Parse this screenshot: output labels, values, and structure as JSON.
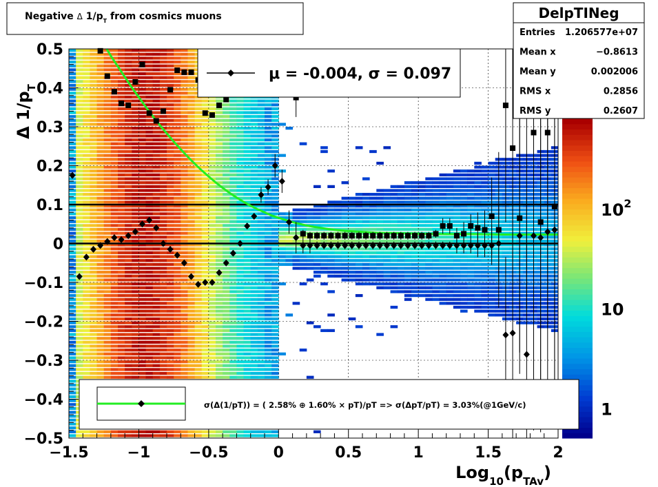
{
  "chart_data": {
    "type": "heatmap",
    "title": "Negative Δ 1/p_T from cosmics muons",
    "xlabel": {
      "base": "Log",
      "sub": "10",
      "rest": "(p",
      "sub2": "TAv",
      "close": ")"
    },
    "ylabel": {
      "main": "Δ 1/p",
      "sub": "T"
    },
    "xlim": [
      -1.5,
      2
    ],
    "ylim": [
      -0.5,
      0.5
    ],
    "x_ticks": [
      {
        "v": -1.5,
        "label": "−1.5"
      },
      {
        "v": -1,
        "label": "−1"
      },
      {
        "v": -0.5,
        "label": "−0.5"
      },
      {
        "v": 0,
        "label": "0"
      },
      {
        "v": 0.5,
        "label": "0.5"
      },
      {
        "v": 1,
        "label": "1"
      },
      {
        "v": 1.5,
        "label": "1.5"
      },
      {
        "v": 2,
        "label": "2"
      }
    ],
    "y_ticks": [
      {
        "v": -0.5,
        "label": "−0.5"
      },
      {
        "v": -0.4,
        "label": "−0.4"
      },
      {
        "v": -0.3,
        "label": "−0.3"
      },
      {
        "v": -0.2,
        "label": "−0.2"
      },
      {
        "v": -0.1,
        "label": "−0.1"
      },
      {
        "v": 0,
        "label": "0"
      },
      {
        "v": 0.1,
        "label": "0.1"
      },
      {
        "v": 0.2,
        "label": "0.2"
      },
      {
        "v": 0.3,
        "label": "0.3"
      },
      {
        "v": 0.4,
        "label": "0.4"
      },
      {
        "v": 0.5,
        "label": "0.5"
      }
    ],
    "grid": true,
    "colorbar": {
      "scale": "log",
      "range": [
        0.5,
        800
      ],
      "labels": [
        {
          "v": 1,
          "base": "1",
          "exp": ""
        },
        {
          "v": 10,
          "base": "10",
          "exp": ""
        },
        {
          "v": 100,
          "base": "10",
          "exp": "2"
        }
      ]
    },
    "reference_lines_y": [
      0,
      0.1
    ],
    "mean_series": {
      "marker": "diamond",
      "x": [
        -1.475,
        -1.425,
        -1.375,
        -1.325,
        -1.275,
        -1.225,
        -1.175,
        -1.125,
        -1.075,
        -1.025,
        -0.975,
        -0.925,
        -0.875,
        -0.825,
        -0.775,
        -0.725,
        -0.675,
        -0.625,
        -0.575,
        -0.525,
        -0.475,
        -0.425,
        -0.375,
        -0.325,
        -0.275,
        -0.225,
        -0.175,
        -0.125,
        -0.075,
        -0.025,
        0.025,
        0.075,
        0.125,
        0.175,
        0.225,
        0.275,
        0.325,
        0.375,
        0.425,
        0.475,
        0.525,
        0.575,
        0.625,
        0.675,
        0.725,
        0.775,
        0.825,
        0.875,
        0.925,
        0.975,
        1.025,
        1.075,
        1.125,
        1.175,
        1.225,
        1.275,
        1.325,
        1.375,
        1.425,
        1.475,
        1.525,
        1.575,
        1.625,
        1.675,
        1.725,
        1.775,
        1.825,
        1.875,
        1.925,
        1.975
      ],
      "y": [
        0.175,
        -0.085,
        -0.035,
        -0.015,
        -0.005,
        0.005,
        0.015,
        0.01,
        0.02,
        0.03,
        0.05,
        0.06,
        0.04,
        0.0,
        -0.015,
        -0.03,
        -0.05,
        -0.085,
        -0.105,
        -0.1,
        -0.1,
        -0.075,
        -0.05,
        -0.025,
        0.0,
        0.045,
        0.07,
        0.125,
        0.145,
        0.2,
        0.16,
        0.055,
        0.015,
        -0.005,
        -0.005,
        -0.005,
        -0.005,
        -0.005,
        -0.005,
        -0.005,
        -0.005,
        -0.005,
        -0.005,
        -0.005,
        -0.005,
        -0.005,
        -0.005,
        -0.005,
        -0.005,
        -0.005,
        -0.005,
        -0.005,
        -0.005,
        -0.005,
        -0.005,
        -0.005,
        -0.005,
        -0.005,
        -0.005,
        -0.005,
        -0.005,
        0.0,
        -0.235,
        -0.23,
        0.02,
        -0.285,
        0.02,
        0.015,
        0.03,
        0.035
      ],
      "yerr": [
        0,
        0,
        0,
        0,
        0,
        0,
        0,
        0,
        0,
        0,
        0,
        0,
        0,
        0,
        0,
        0,
        0,
        0,
        0,
        0,
        0,
        0,
        0,
        0,
        0,
        0,
        0,
        0.02,
        0.02,
        0.03,
        0.03,
        0.03,
        0.04,
        0.02,
        0.02,
        0.01,
        0.01,
        0.01,
        0.01,
        0.01,
        0.01,
        0.01,
        0.01,
        0.01,
        0.01,
        0.01,
        0.01,
        0.01,
        0.01,
        0.01,
        0.01,
        0.01,
        0.01,
        0.01,
        0.01,
        0.02,
        0.02,
        0.02,
        0.03,
        0.03,
        0.05,
        0.1,
        0.2,
        0.35,
        0.3,
        0.4,
        0.5,
        0.5,
        0.5,
        0.5
      ]
    },
    "sigma_series": {
      "marker": "square",
      "x": [
        -1.275,
        -1.225,
        -1.175,
        -1.125,
        -1.075,
        -1.025,
        -0.975,
        -0.925,
        -0.875,
        -0.825,
        -0.775,
        -0.725,
        -0.675,
        -0.625,
        -0.575,
        -0.525,
        -0.475,
        -0.425,
        -0.375,
        -0.325,
        -0.275,
        0.125,
        0.175,
        0.225,
        0.275,
        0.325,
        0.375,
        0.425,
        0.475,
        0.525,
        0.575,
        0.625,
        0.675,
        0.725,
        0.775,
        0.825,
        0.875,
        0.925,
        0.975,
        1.025,
        1.075,
        1.125,
        1.175,
        1.225,
        1.275,
        1.325,
        1.375,
        1.425,
        1.475,
        1.525,
        1.575,
        1.625,
        1.675,
        1.725,
        1.775,
        1.825,
        1.875,
        1.925,
        1.975
      ],
      "y": [
        0.495,
        0.43,
        0.39,
        0.36,
        0.355,
        0.415,
        0.46,
        0.335,
        0.315,
        0.34,
        0.395,
        0.445,
        0.44,
        0.44,
        0.42,
        0.335,
        0.33,
        0.355,
        0.37,
        0.4,
        0.44,
        0.375,
        0.025,
        0.02,
        0.02,
        0.02,
        0.02,
        0.02,
        0.02,
        0.02,
        0.02,
        0.02,
        0.02,
        0.02,
        0.02,
        0.02,
        0.02,
        0.02,
        0.02,
        0.02,
        0.02,
        0.025,
        0.045,
        0.045,
        0.02,
        0.025,
        0.045,
        0.04,
        0.035,
        0.07,
        0.035,
        0.355,
        0.245,
        0.065,
        0.33,
        0.285,
        0.055,
        0.285,
        0.095
      ],
      "yerr": [
        0,
        0,
        0,
        0,
        0,
        0,
        0,
        0,
        0,
        0,
        0,
        0,
        0,
        0,
        0,
        0,
        0,
        0,
        0,
        0,
        0,
        0.05,
        0.01,
        0.01,
        0.01,
        0.01,
        0.01,
        0.01,
        0.01,
        0.01,
        0.01,
        0.01,
        0.01,
        0.01,
        0.01,
        0.01,
        0.01,
        0.01,
        0.01,
        0.01,
        0.01,
        0.01,
        0.02,
        0.02,
        0.02,
        0.03,
        0.03,
        0.04,
        0.05,
        0.1,
        0.2,
        0.3,
        0.35,
        0.4,
        0.5,
        0.5,
        0.5,
        0.5,
        0.5
      ]
    },
    "fit_curve": {
      "color": "#22ee22",
      "x": [
        -1.23,
        -1.2,
        -1.15,
        -1.1,
        -1.05,
        -1.0,
        -0.95,
        -0.9,
        -0.85,
        -0.8,
        -0.75,
        -0.7,
        -0.65,
        -0.6,
        -0.55,
        -0.5,
        -0.45,
        -0.4,
        -0.35,
        -0.3,
        -0.25,
        -0.2,
        -0.15,
        -0.1,
        -0.05,
        0.0,
        0.1,
        0.2,
        0.3,
        0.4,
        0.5,
        0.6,
        0.7,
        0.8,
        0.9,
        1.0,
        1.2,
        1.4,
        1.6,
        1.8,
        2.0
      ],
      "y": [
        0.5,
        0.482,
        0.455,
        0.428,
        0.401,
        0.376,
        0.351,
        0.327,
        0.304,
        0.283,
        0.262,
        0.242,
        0.223,
        0.205,
        0.188,
        0.172,
        0.157,
        0.143,
        0.13,
        0.118,
        0.107,
        0.097,
        0.088,
        0.08,
        0.072,
        0.066,
        0.055,
        0.046,
        0.04,
        0.035,
        0.032,
        0.03,
        0.028,
        0.027,
        0.026,
        0.025,
        0.024,
        0.024,
        0.023,
        0.023,
        0.023
      ]
    },
    "legend_top": {
      "mu_text": "μ = -0.004, σ =   0.097"
    },
    "legend_bottom": {
      "text": "σ(Δ(1/pT)) = ( 2.58% ⊕  1.60% × pT)/pT => σ(ΔpT/pT) =  3.03%(@1GeV/c)"
    },
    "stats_box": {
      "name": "DelpTINeg",
      "rows": [
        {
          "label": "Entries",
          "value": "1.206577e+07"
        },
        {
          "label": "Mean x",
          "value": "−0.8613"
        },
        {
          "label": "Mean y",
          "value": "0.002006"
        },
        {
          "label": "RMS x",
          "value": "0.2856"
        },
        {
          "label": "RMS y",
          "value": "0.2607"
        }
      ]
    }
  }
}
